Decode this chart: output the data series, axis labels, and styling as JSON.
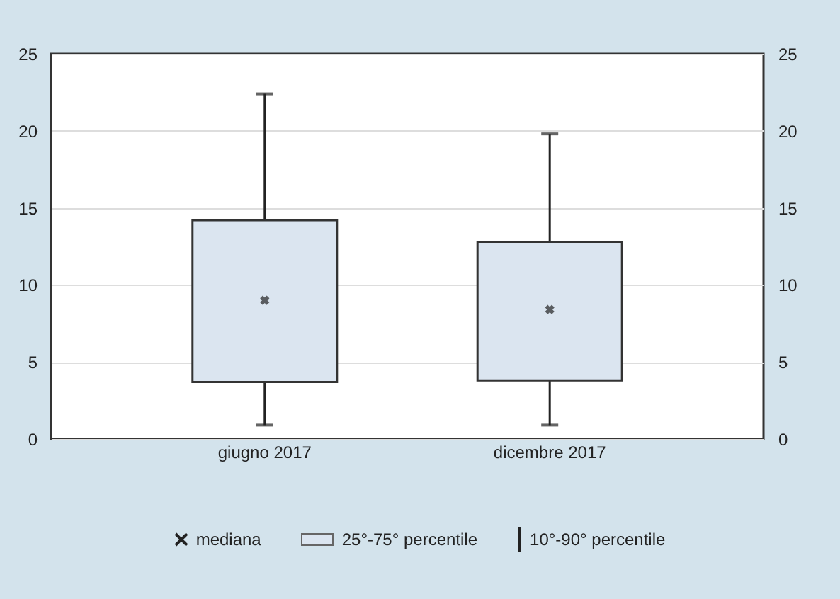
{
  "chart_data": {
    "type": "box",
    "categories": [
      "giugno 2017",
      "dicembre 2017"
    ],
    "boxes": [
      {
        "low": 0.9,
        "q1": 3.7,
        "median": 9.0,
        "q3": 14.2,
        "high": 22.4
      },
      {
        "low": 0.9,
        "q1": 3.8,
        "median": 8.4,
        "q3": 12.8,
        "high": 19.8
      }
    ],
    "color": "#dbe5f0",
    "ylim": [
      0,
      25
    ],
    "yticks": [
      0,
      5,
      10,
      15,
      20,
      25
    ],
    "y2lim": [
      0,
      25
    ],
    "y2ticks": [
      0,
      5,
      10,
      15,
      20,
      25
    ],
    "grid": "y",
    "marker": "cross",
    "annotations": [
      "mediana",
      "25°-75° percentile",
      "10°-90° percentile"
    ]
  }
}
